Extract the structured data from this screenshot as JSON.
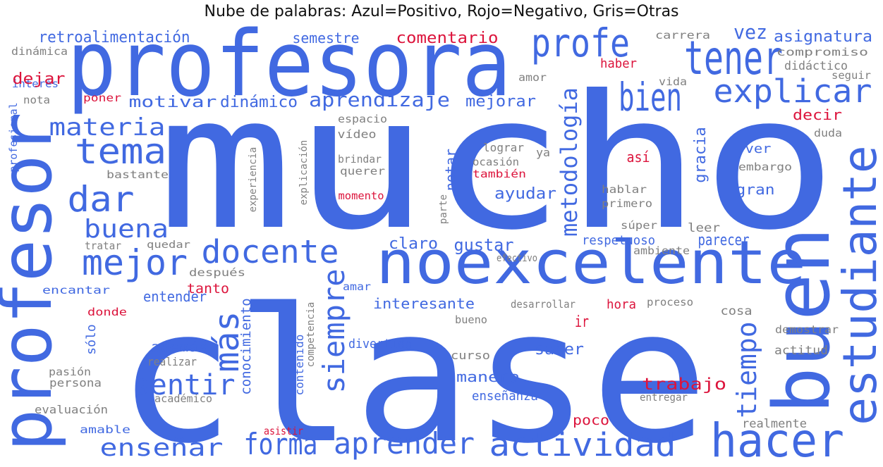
{
  "chart_data": {
    "type": "wordcloud",
    "title": "Nube de palabras: Azul=Positivo, Rojo=Negativo, Gris=Otras",
    "legend": {
      "Azul": "Positivo",
      "Rojo": "Negativo",
      "Gris": "Otras"
    },
    "colors": {
      "positive": "#4169E1",
      "negative": "#DC143C",
      "other": "#808080"
    },
    "words": [
      {
        "text": "mucho",
        "sentiment": "positive"
      },
      {
        "text": "clase",
        "sentiment": "positive"
      },
      {
        "text": "profesora",
        "sentiment": "positive"
      },
      {
        "text": "profesor",
        "sentiment": "positive"
      },
      {
        "text": "buen",
        "sentiment": "positive"
      },
      {
        "text": "noexcelente",
        "sentiment": "positive"
      },
      {
        "text": "estudiante",
        "sentiment": "positive"
      },
      {
        "text": "tener",
        "sentiment": "positive"
      },
      {
        "text": "hacer",
        "sentiment": "positive"
      },
      {
        "text": "profe",
        "sentiment": "positive"
      },
      {
        "text": "bien",
        "sentiment": "positive"
      },
      {
        "text": "explicar",
        "sentiment": "positive"
      },
      {
        "text": "tema",
        "sentiment": "positive"
      },
      {
        "text": "dar",
        "sentiment": "positive"
      },
      {
        "text": "mejor",
        "sentiment": "positive"
      },
      {
        "text": "docente",
        "sentiment": "positive"
      },
      {
        "text": "forma",
        "sentiment": "positive"
      },
      {
        "text": "aprender",
        "sentiment": "positive"
      },
      {
        "text": "actividad",
        "sentiment": "positive"
      },
      {
        "text": "más",
        "sentiment": "positive"
      },
      {
        "text": "siempre",
        "sentiment": "positive"
      },
      {
        "text": "metodología",
        "sentiment": "positive"
      },
      {
        "text": "tiempo",
        "sentiment": "positive"
      },
      {
        "text": "sentir",
        "sentiment": "positive"
      },
      {
        "text": "enseñar",
        "sentiment": "positive"
      },
      {
        "text": "materia",
        "sentiment": "positive"
      },
      {
        "text": "buena",
        "sentiment": "positive"
      },
      {
        "text": "aprendizaje",
        "sentiment": "positive"
      },
      {
        "text": "vez",
        "sentiment": "positive"
      },
      {
        "text": "retroalimentación",
        "sentiment": "positive"
      },
      {
        "text": "semestre",
        "sentiment": "positive"
      },
      {
        "text": "asignatura",
        "sentiment": "positive"
      },
      {
        "text": "motivar",
        "sentiment": "positive"
      },
      {
        "text": "dinámico",
        "sentiment": "positive"
      },
      {
        "text": "mejorar",
        "sentiment": "positive"
      },
      {
        "text": "gracia",
        "sentiment": "positive"
      },
      {
        "text": "claro",
        "sentiment": "positive"
      },
      {
        "text": "gustar",
        "sentiment": "positive"
      },
      {
        "text": "parecer",
        "sentiment": "positive"
      },
      {
        "text": "respetuoso",
        "sentiment": "positive"
      },
      {
        "text": "ayudar",
        "sentiment": "positive"
      },
      {
        "text": "gran",
        "sentiment": "positive"
      },
      {
        "text": "notar",
        "sentiment": "positive"
      },
      {
        "text": "entender",
        "sentiment": "positive"
      },
      {
        "text": "conocimiento",
        "sentiment": "positive"
      },
      {
        "text": "interesante",
        "sentiment": "positive"
      },
      {
        "text": "saber",
        "sentiment": "positive"
      },
      {
        "text": "manera",
        "sentiment": "positive"
      },
      {
        "text": "enseñanza",
        "sentiment": "positive"
      },
      {
        "text": "además",
        "sentiment": "positive"
      },
      {
        "text": "divertido",
        "sentiment": "positive"
      },
      {
        "text": "contenido",
        "sentiment": "positive"
      },
      {
        "text": "sólo",
        "sentiment": "positive"
      },
      {
        "text": "encantar",
        "sentiment": "positive"
      },
      {
        "text": "amar",
        "sentiment": "positive"
      },
      {
        "text": "interés",
        "sentiment": "positive"
      },
      {
        "text": "profesional",
        "sentiment": "positive"
      },
      {
        "text": "amable",
        "sentiment": "positive"
      },
      {
        "text": "ver",
        "sentiment": "positive"
      },
      {
        "text": "comentario",
        "sentiment": "negative"
      },
      {
        "text": "dejar",
        "sentiment": "negative"
      },
      {
        "text": "poner",
        "sentiment": "negative"
      },
      {
        "text": "haber",
        "sentiment": "negative"
      },
      {
        "text": "decir",
        "sentiment": "negative"
      },
      {
        "text": "así",
        "sentiment": "negative"
      },
      {
        "text": "también",
        "sentiment": "negative"
      },
      {
        "text": "momento",
        "sentiment": "negative"
      },
      {
        "text": "tanto",
        "sentiment": "negative"
      },
      {
        "text": "donde",
        "sentiment": "negative"
      },
      {
        "text": "hora",
        "sentiment": "negative"
      },
      {
        "text": "ir",
        "sentiment": "negative"
      },
      {
        "text": "trabajo",
        "sentiment": "negative"
      },
      {
        "text": "poco",
        "sentiment": "negative"
      },
      {
        "text": "asistir",
        "sentiment": "negative"
      },
      {
        "text": "dinámica",
        "sentiment": "other"
      },
      {
        "text": "nota",
        "sentiment": "other"
      },
      {
        "text": "carrera",
        "sentiment": "other"
      },
      {
        "text": "compromiso",
        "sentiment": "other"
      },
      {
        "text": "didáctico",
        "sentiment": "other"
      },
      {
        "text": "amor",
        "sentiment": "other"
      },
      {
        "text": "vida",
        "sentiment": "other"
      },
      {
        "text": "seguir",
        "sentiment": "other"
      },
      {
        "text": "espacio",
        "sentiment": "other"
      },
      {
        "text": "vídeo",
        "sentiment": "other"
      },
      {
        "text": "lograr",
        "sentiment": "other"
      },
      {
        "text": "ya",
        "sentiment": "other"
      },
      {
        "text": "duda",
        "sentiment": "other"
      },
      {
        "text": "brindar",
        "sentiment": "other"
      },
      {
        "text": "querer",
        "sentiment": "other"
      },
      {
        "text": "ocasión",
        "sentiment": "other"
      },
      {
        "text": "embargo",
        "sentiment": "other"
      },
      {
        "text": "bastante",
        "sentiment": "other"
      },
      {
        "text": "experiencia",
        "sentiment": "other"
      },
      {
        "text": "explicación",
        "sentiment": "other"
      },
      {
        "text": "hablar",
        "sentiment": "other"
      },
      {
        "text": "primero",
        "sentiment": "other"
      },
      {
        "text": "parte",
        "sentiment": "other"
      },
      {
        "text": "súper",
        "sentiment": "other"
      },
      {
        "text": "leer",
        "sentiment": "other"
      },
      {
        "text": "tratar",
        "sentiment": "other"
      },
      {
        "text": "quedar",
        "sentiment": "other"
      },
      {
        "text": "efectivo",
        "sentiment": "other"
      },
      {
        "text": "ambiente",
        "sentiment": "other"
      },
      {
        "text": "después",
        "sentiment": "other"
      },
      {
        "text": "desarrollar",
        "sentiment": "other"
      },
      {
        "text": "proceso",
        "sentiment": "other"
      },
      {
        "text": "cosa",
        "sentiment": "other"
      },
      {
        "text": "competencia",
        "sentiment": "other"
      },
      {
        "text": "bueno",
        "sentiment": "other"
      },
      {
        "text": "demostrar",
        "sentiment": "other"
      },
      {
        "text": "actitud",
        "sentiment": "other"
      },
      {
        "text": "curso",
        "sentiment": "other"
      },
      {
        "text": "realizar",
        "sentiment": "other"
      },
      {
        "text": "pasión",
        "sentiment": "other"
      },
      {
        "text": "persona",
        "sentiment": "other"
      },
      {
        "text": "académico",
        "sentiment": "other"
      },
      {
        "text": "entregar",
        "sentiment": "other"
      },
      {
        "text": "evaluación",
        "sentiment": "other"
      },
      {
        "text": "realmente",
        "sentiment": "other"
      }
    ]
  }
}
